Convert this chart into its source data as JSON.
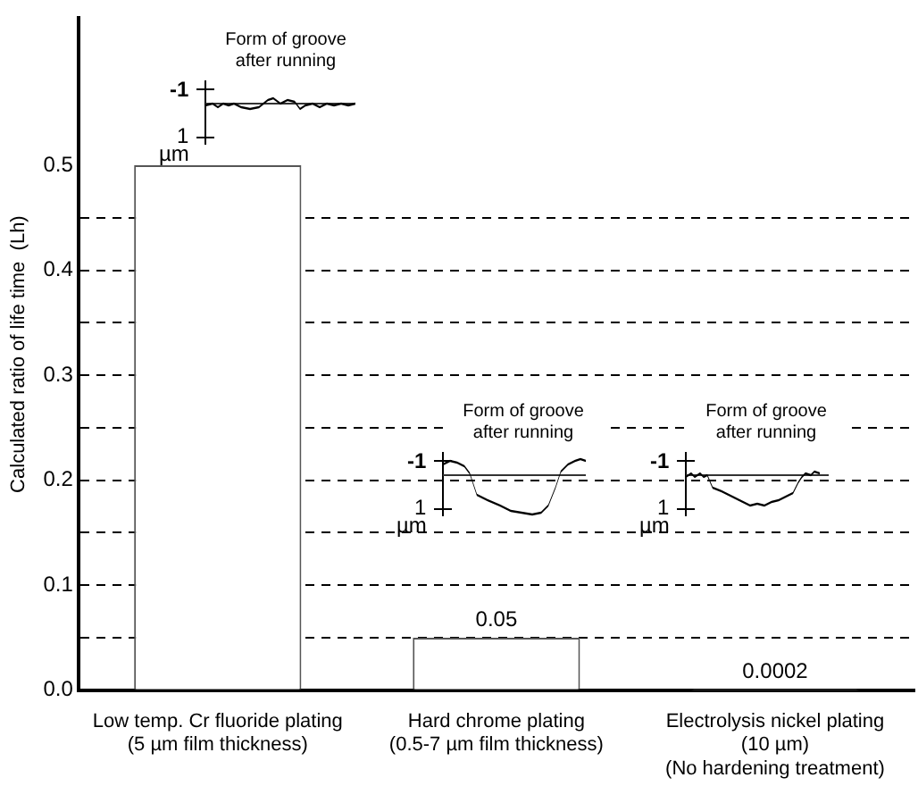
{
  "chart_data": {
    "type": "bar",
    "categories": [
      "Low temp. Cr fluoride plating\n(5 µm film thickness)",
      "Hard chrome plating\n(0.5-7 µm film thickness)",
      "Electrolysis nickel plating\n(10 µm)\n(No hardening treatment)"
    ],
    "values": [
      0.5,
      0.05,
      0.0002
    ],
    "value_labels": [
      null,
      "0.05",
      "0.0002"
    ],
    "color": "#ffffff",
    "ylabel": "Calculated ratio of life time  (Lh)",
    "ylim": [
      0,
      0.64
    ],
    "yticks": [
      {
        "value": 0,
        "label": "0.0"
      },
      {
        "value": 0.05,
        "label": null
      },
      {
        "value": 0.1,
        "label": "0.1"
      },
      {
        "value": 0.15,
        "label": null
      },
      {
        "value": 0.2,
        "label": "0.2"
      },
      {
        "value": 0.25,
        "label": null
      },
      {
        "value": 0.3,
        "label": "0.3"
      },
      {
        "value": 0.35,
        "label": null
      },
      {
        "value": 0.4,
        "label": "0.4"
      },
      {
        "value": 0.45,
        "label": null
      },
      {
        "value": 0.5,
        "label": "0.5"
      }
    ],
    "grid": "y",
    "annotations": [
      "Form of groove\nafter running",
      "-1",
      "1",
      "µm",
      "Form of groove\nafter running",
      "-1",
      "1",
      "µm",
      "Form of groove\nafter running",
      "-1",
      "1",
      "µm"
    ]
  }
}
